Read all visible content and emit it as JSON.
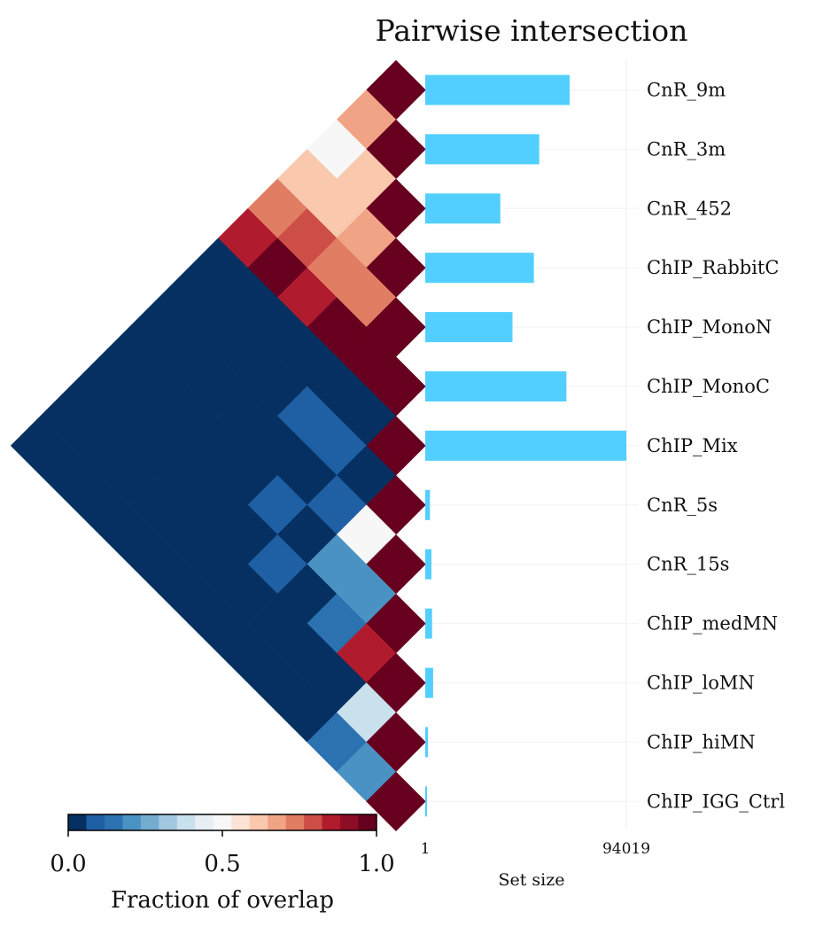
{
  "title": "Pairwise intersection",
  "colorbar": {
    "label": "Fraction of overlap",
    "ticks": [
      "0.0",
      "0.5",
      "1.0"
    ],
    "colors": [
      "#053061",
      "#1f5fa4",
      "#2c72b1",
      "#4a92c3",
      "#74acd0",
      "#a1c8e0",
      "#c9e0ed",
      "#e7eff4",
      "#f7f7f7",
      "#fbe3d5",
      "#f9c8ad",
      "#f1a385",
      "#e17d62",
      "#cc4e46",
      "#b01b2d",
      "#8c0d25",
      "#67001f"
    ]
  },
  "chart_data": [
    {
      "type": "heatmap",
      "title": "Pairwise intersection",
      "sets": [
        "CnR_9m",
        "CnR_3m",
        "CnR_452",
        "ChIP_RabbitC",
        "ChIP_MonoN",
        "ChIP_MonoC",
        "ChIP_Mix",
        "CnR_5s",
        "CnR_15s",
        "ChIP_medMN",
        "ChIP_loMN",
        "ChIP_hiMN",
        "ChIP_IGG_Ctrl"
      ],
      "value_label": "Fraction of overlap",
      "value_range": [
        0,
        1
      ],
      "matrix": [
        [
          1.0,
          0.68,
          0.5,
          0.62,
          0.74,
          0.88,
          0.0,
          0.0,
          0.0,
          0.0,
          0.0,
          0.0,
          0.0
        ],
        [
          0.68,
          1.0,
          0.6,
          0.64,
          0.82,
          0.95,
          0.0,
          0.0,
          0.0,
          0.0,
          0.0,
          0.0,
          0.0
        ],
        [
          0.5,
          0.6,
          1.0,
          0.65,
          0.72,
          0.86,
          0.0,
          0.0,
          0.0,
          0.0,
          0.0,
          0.0,
          0.0
        ],
        [
          0.62,
          0.64,
          0.65,
          1.0,
          0.72,
          0.95,
          0.0,
          0.0,
          0.0,
          0.0,
          0.0,
          0.0,
          0.0
        ],
        [
          0.74,
          0.82,
          0.72,
          0.72,
          1.0,
          1.0,
          0.05,
          0.07,
          0.05,
          0.0,
          0.0,
          0.0,
          0.0
        ],
        [
          0.88,
          0.95,
          0.86,
          0.95,
          1.0,
          1.0,
          0.0,
          0.08,
          0.0,
          0.1,
          0.0,
          0.0,
          0.0
        ],
        [
          0.0,
          0.0,
          0.0,
          0.0,
          0.05,
          0.0,
          1.0,
          0.0,
          0.08,
          0.0,
          0.08,
          0.0,
          0.0
        ],
        [
          0.0,
          0.0,
          0.0,
          0.0,
          0.07,
          0.08,
          0.0,
          1.0,
          0.5,
          0.2,
          0.0,
          0.0,
          0.0
        ],
        [
          0.0,
          0.0,
          0.0,
          0.0,
          0.05,
          0.0,
          0.08,
          0.5,
          1.0,
          0.2,
          0.15,
          0.0,
          0.0
        ],
        [
          0.0,
          0.0,
          0.0,
          0.0,
          0.0,
          0.1,
          0.0,
          0.2,
          0.2,
          1.0,
          0.85,
          0.05,
          0.05
        ],
        [
          0.0,
          0.0,
          0.0,
          0.0,
          0.0,
          0.0,
          0.08,
          0.0,
          0.15,
          0.85,
          1.0,
          0.4,
          0.12
        ],
        [
          0.0,
          0.0,
          0.0,
          0.0,
          0.0,
          0.0,
          0.0,
          0.0,
          0.0,
          0.05,
          0.4,
          1.0,
          0.22
        ],
        [
          0.0,
          0.0,
          0.0,
          0.0,
          0.0,
          0.0,
          0.0,
          0.0,
          0.0,
          0.05,
          0.12,
          0.22,
          1.0
        ]
      ]
    },
    {
      "type": "bar",
      "orientation": "horizontal",
      "categories": [
        "CnR_9m",
        "CnR_3m",
        "CnR_452",
        "ChIP_RabbitC",
        "ChIP_MonoN",
        "ChIP_MonoC",
        "ChIP_Mix",
        "CnR_5s",
        "CnR_15s",
        "ChIP_medMN",
        "ChIP_loMN",
        "ChIP_hiMN",
        "ChIP_IGG_Ctrl"
      ],
      "values": [
        67500,
        53300,
        35100,
        50800,
        40800,
        66000,
        94019,
        2200,
        2900,
        3200,
        3700,
        1300,
        200
      ],
      "xlabel": "Set size",
      "xlim": [
        1,
        94019
      ],
      "xticks": [
        "1",
        "94019"
      ],
      "color": "#52cffe"
    }
  ]
}
